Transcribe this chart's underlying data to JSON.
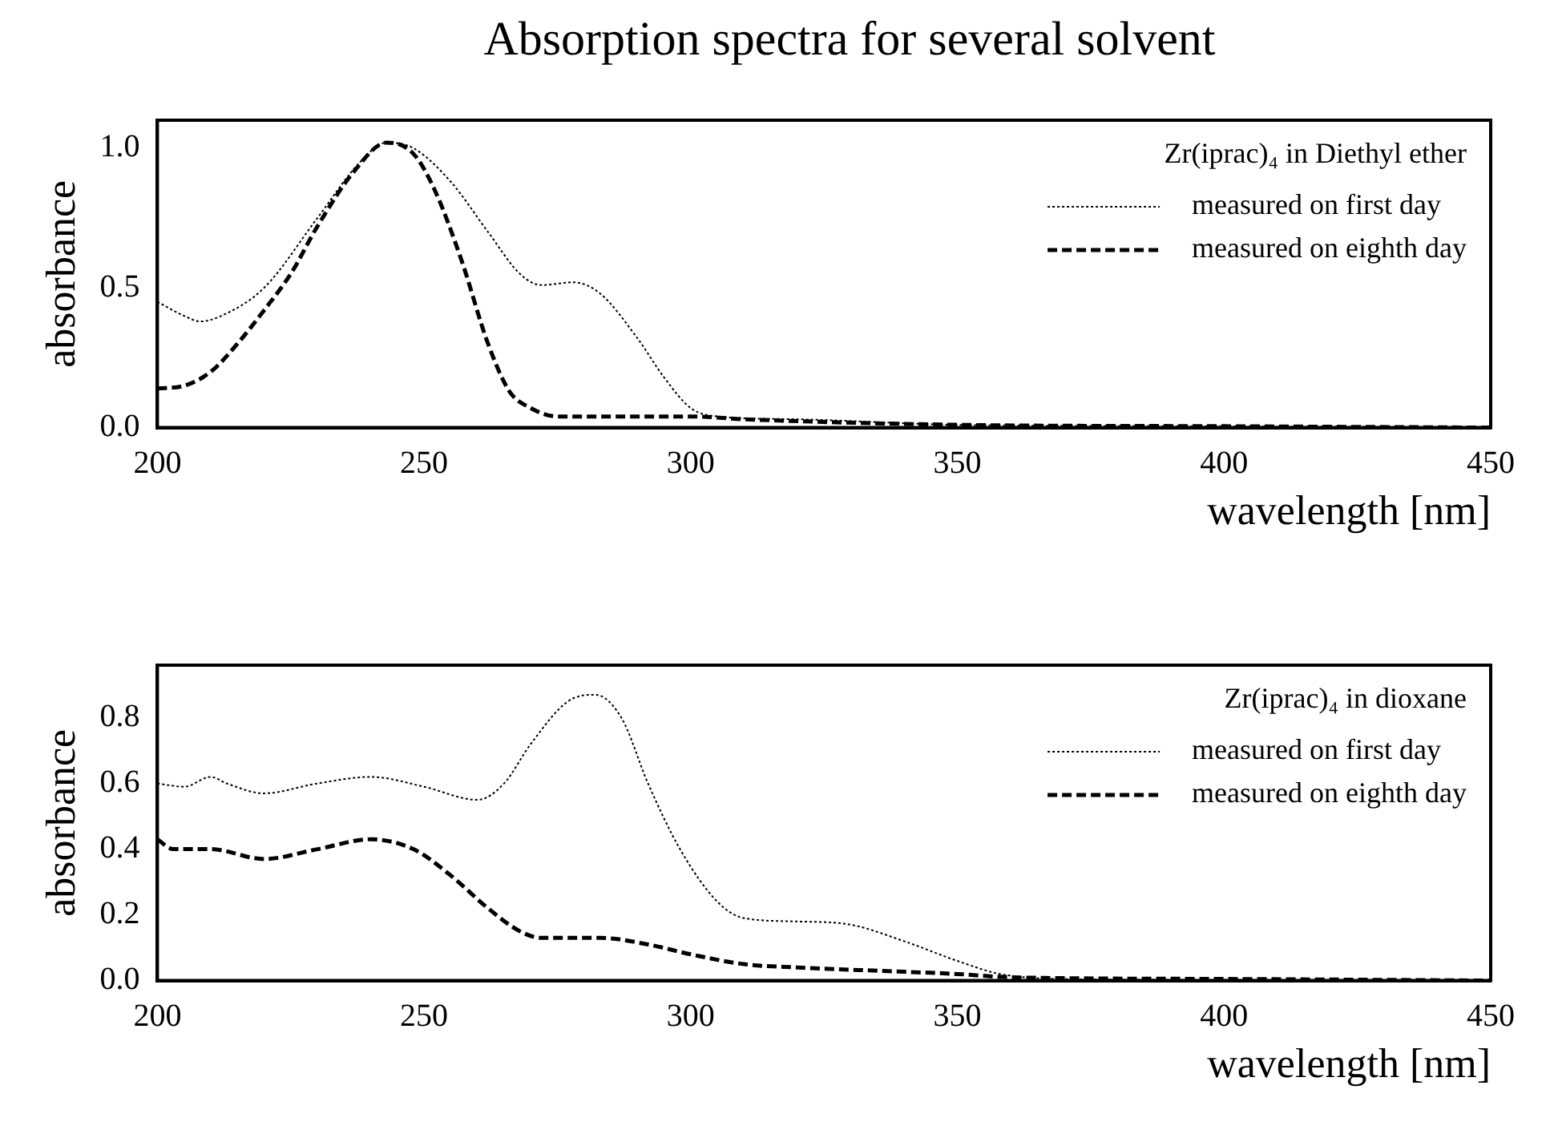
{
  "chart_data": [
    {
      "type": "line",
      "title": "Absorption spectra for several solvent",
      "xlabel": "wavelength [nm]",
      "ylabel": "absorbance",
      "legend_title": "Zr(iprac)₄ in Diethyl ether",
      "legend": "top right",
      "grid": false,
      "marker": "none",
      "xlim": [
        200,
        450
      ],
      "xticks": [
        200,
        250,
        300,
        350,
        400,
        450
      ],
      "ylim": [
        0,
        1.1
      ],
      "yticks": [
        {
          "value": 0,
          "label": "0.0"
        },
        {
          "value": 0.5,
          "label": "0.5"
        },
        {
          "value": 1,
          "label": "1.0"
        }
      ],
      "series": [
        {
          "name": "measured on first day",
          "color": "#000000",
          "line_style": "dotted",
          "x": [
            200,
            205,
            208,
            212,
            220,
            230,
            238,
            243,
            248,
            255,
            262,
            268,
            272,
            278,
            283,
            290,
            295,
            300,
            305,
            320,
            350,
            400,
            450
          ],
          "values": [
            0.45,
            0.4,
            0.38,
            0.4,
            0.5,
            0.75,
            0.95,
            1.02,
            1.0,
            0.88,
            0.7,
            0.55,
            0.51,
            0.52,
            0.48,
            0.32,
            0.18,
            0.07,
            0.04,
            0.03,
            0.01,
            0.005,
            0
          ]
        },
        {
          "name": "measured on eighth day",
          "color": "#000000",
          "line_style": "dashed",
          "x": [
            200,
            205,
            210,
            215,
            220,
            225,
            230,
            237,
            243,
            248,
            252,
            257,
            262,
            266,
            270,
            275,
            290,
            300,
            310,
            350,
            400,
            450
          ],
          "values": [
            0.14,
            0.15,
            0.2,
            0.3,
            0.42,
            0.55,
            0.72,
            0.92,
            1.02,
            0.98,
            0.85,
            0.6,
            0.3,
            0.13,
            0.07,
            0.04,
            0.04,
            0.04,
            0.03,
            0.01,
            0.005,
            0
          ]
        }
      ]
    },
    {
      "type": "line",
      "xlabel": "wavelength [nm]",
      "ylabel": "absorbance",
      "legend_title": "Zr(iprac)₄ in dioxane",
      "legend": "top right",
      "grid": false,
      "marker": "none",
      "xlim": [
        200,
        450
      ],
      "xticks": [
        200,
        250,
        300,
        350,
        400,
        450
      ],
      "ylim": [
        0,
        0.96
      ],
      "yticks": [
        {
          "value": 0,
          "label": "0.0"
        },
        {
          "value": 0.2,
          "label": "0.2"
        },
        {
          "value": 0.4,
          "label": "0.4"
        },
        {
          "value": 0.6,
          "label": "0.6"
        },
        {
          "value": 0.8,
          "label": "0.8"
        }
      ],
      "series": [
        {
          "name": "measured on first day",
          "color": "#000000",
          "line_style": "dotted",
          "x": [
            200,
            205,
            210,
            213,
            220,
            230,
            240,
            250,
            260,
            265,
            270,
            277,
            282,
            287,
            292,
            298,
            305,
            310,
            320,
            330,
            340,
            350,
            358,
            370,
            400,
            450
          ],
          "values": [
            0.6,
            0.59,
            0.62,
            0.6,
            0.57,
            0.6,
            0.62,
            0.59,
            0.55,
            0.6,
            0.72,
            0.85,
            0.87,
            0.8,
            0.6,
            0.4,
            0.24,
            0.19,
            0.18,
            0.17,
            0.12,
            0.06,
            0.02,
            0.005,
            0.002,
            0
          ]
        },
        {
          "name": "measured on eighth day",
          "color": "#000000",
          "line_style": "dashed",
          "x": [
            200,
            203,
            210,
            220,
            230,
            240,
            248,
            255,
            262,
            268,
            272,
            283,
            292,
            300,
            310,
            320,
            335,
            350,
            360,
            400,
            450
          ],
          "values": [
            0.43,
            0.4,
            0.4,
            0.37,
            0.4,
            0.43,
            0.4,
            0.32,
            0.22,
            0.15,
            0.13,
            0.13,
            0.11,
            0.08,
            0.05,
            0.04,
            0.03,
            0.02,
            0.01,
            0.005,
            0
          ]
        }
      ]
    }
  ]
}
